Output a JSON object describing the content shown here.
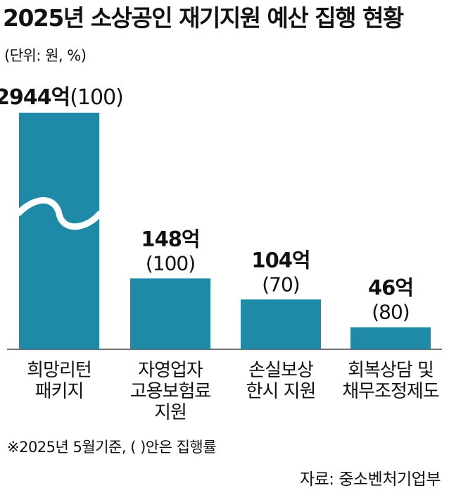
{
  "title": "2025년 소상공인 재기지원 예산 집행 현황",
  "unit_note": "(단위: 원, %)",
  "chart_data": {
    "type": "bar",
    "title": "2025년 소상공인 재기지원 예산 집행 현황",
    "categories": [
      [
        "희망리턴",
        "패키지"
      ],
      [
        "자영업자",
        "고용보험료",
        "지원"
      ],
      [
        "손실보상",
        "한시 지원"
      ],
      [
        "회복상담 및",
        "채무조정제도"
      ]
    ],
    "values": [
      2944,
      148,
      104,
      46
    ],
    "value_labels": [
      "2944억",
      "148억",
      "104억",
      "46억"
    ],
    "rate_labels": [
      "(100)",
      "(100)",
      "(70)",
      "(80)"
    ],
    "execution_rates": [
      100,
      100,
      70,
      80
    ],
    "y_axis_break": true,
    "bar_color": "#1e8aa8",
    "grid": false
  },
  "footnote": "※2025년 5월기준, ( )안은 집행률",
  "source": "자료: 중소벤처기업부"
}
